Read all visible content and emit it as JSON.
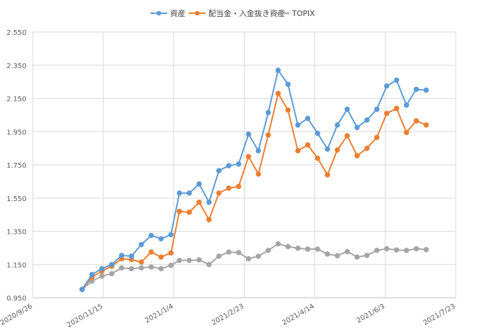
{
  "chart_data": {
    "type": "line",
    "title": "",
    "xlabel": "",
    "ylabel": "",
    "legend_position": "top",
    "grid": true,
    "ylim": [
      0.95,
      2.55
    ],
    "yticks": [
      "0.950",
      "1.150",
      "1.350",
      "1.550",
      "1.750",
      "1.950",
      "2.150",
      "2.350",
      "2.550"
    ],
    "xlim": [
      "2020-09-26",
      "2021-07-23"
    ],
    "xticks": [
      {
        "date": "2020-09-26",
        "label": "2020/9/26"
      },
      {
        "date": "2020-11-15",
        "label": "2020/11/15"
      },
      {
        "date": "2021-01-04",
        "label": "2021/1/4"
      },
      {
        "date": "2021-02-23",
        "label": "2021/2/23"
      },
      {
        "date": "2021-04-14",
        "label": "2021/4/14"
      },
      {
        "date": "2021-06-03",
        "label": "2021/6/3"
      },
      {
        "date": "2021-07-23",
        "label": "2021/7/23"
      }
    ],
    "x": [
      "2020-10-31",
      "2020-11-07",
      "2020-11-14",
      "2020-11-21",
      "2020-11-28",
      "2020-12-05",
      "2020-12-12",
      "2020-12-19",
      "2020-12-26",
      "2021-01-02",
      "2021-01-08",
      "2021-01-15",
      "2021-01-22",
      "2021-01-29",
      "2021-02-05",
      "2021-02-12",
      "2021-02-19",
      "2021-02-26",
      "2021-03-05",
      "2021-03-12",
      "2021-03-19",
      "2021-03-26",
      "2021-04-02",
      "2021-04-09",
      "2021-04-16",
      "2021-04-23",
      "2021-04-30",
      "2021-05-07",
      "2021-05-14",
      "2021-05-21",
      "2021-05-28",
      "2021-06-04",
      "2021-06-11",
      "2021-06-18",
      "2021-06-25",
      "2021-07-02"
    ],
    "series": [
      {
        "name": "資産",
        "color": "#5b9bd5",
        "values": [
          1.0,
          1.09,
          1.125,
          1.15,
          1.205,
          1.2,
          1.27,
          1.325,
          1.305,
          1.33,
          1.58,
          1.58,
          1.635,
          1.525,
          1.715,
          1.745,
          1.755,
          1.935,
          1.835,
          2.065,
          2.32,
          2.235,
          1.99,
          2.03,
          1.94,
          1.845,
          1.99,
          2.085,
          1.975,
          2.02,
          2.085,
          2.225,
          2.26,
          2.11,
          2.205,
          2.2
        ]
      },
      {
        "name": "配当金・入金抜き資産",
        "color": "#ed7d31",
        "values": [
          1.0,
          1.075,
          1.11,
          1.14,
          1.185,
          1.18,
          1.165,
          1.225,
          1.195,
          1.22,
          1.47,
          1.465,
          1.525,
          1.42,
          1.58,
          1.61,
          1.62,
          1.8,
          1.695,
          1.93,
          2.18,
          2.08,
          1.835,
          1.87,
          1.79,
          1.69,
          1.84,
          1.925,
          1.805,
          1.85,
          1.915,
          2.06,
          2.09,
          1.945,
          2.015,
          1.99
        ]
      },
      {
        "name": "TOPIX",
        "color": "#a5a5a5",
        "values": [
          1.0,
          1.05,
          1.08,
          1.095,
          1.13,
          1.125,
          1.13,
          1.135,
          1.125,
          1.145,
          1.175,
          1.175,
          1.178,
          1.15,
          1.2,
          1.225,
          1.222,
          1.185,
          1.2,
          1.235,
          1.275,
          1.258,
          1.248,
          1.243,
          1.243,
          1.213,
          1.203,
          1.228,
          1.195,
          1.205,
          1.235,
          1.245,
          1.238,
          1.235,
          1.245,
          1.24
        ]
      }
    ]
  }
}
